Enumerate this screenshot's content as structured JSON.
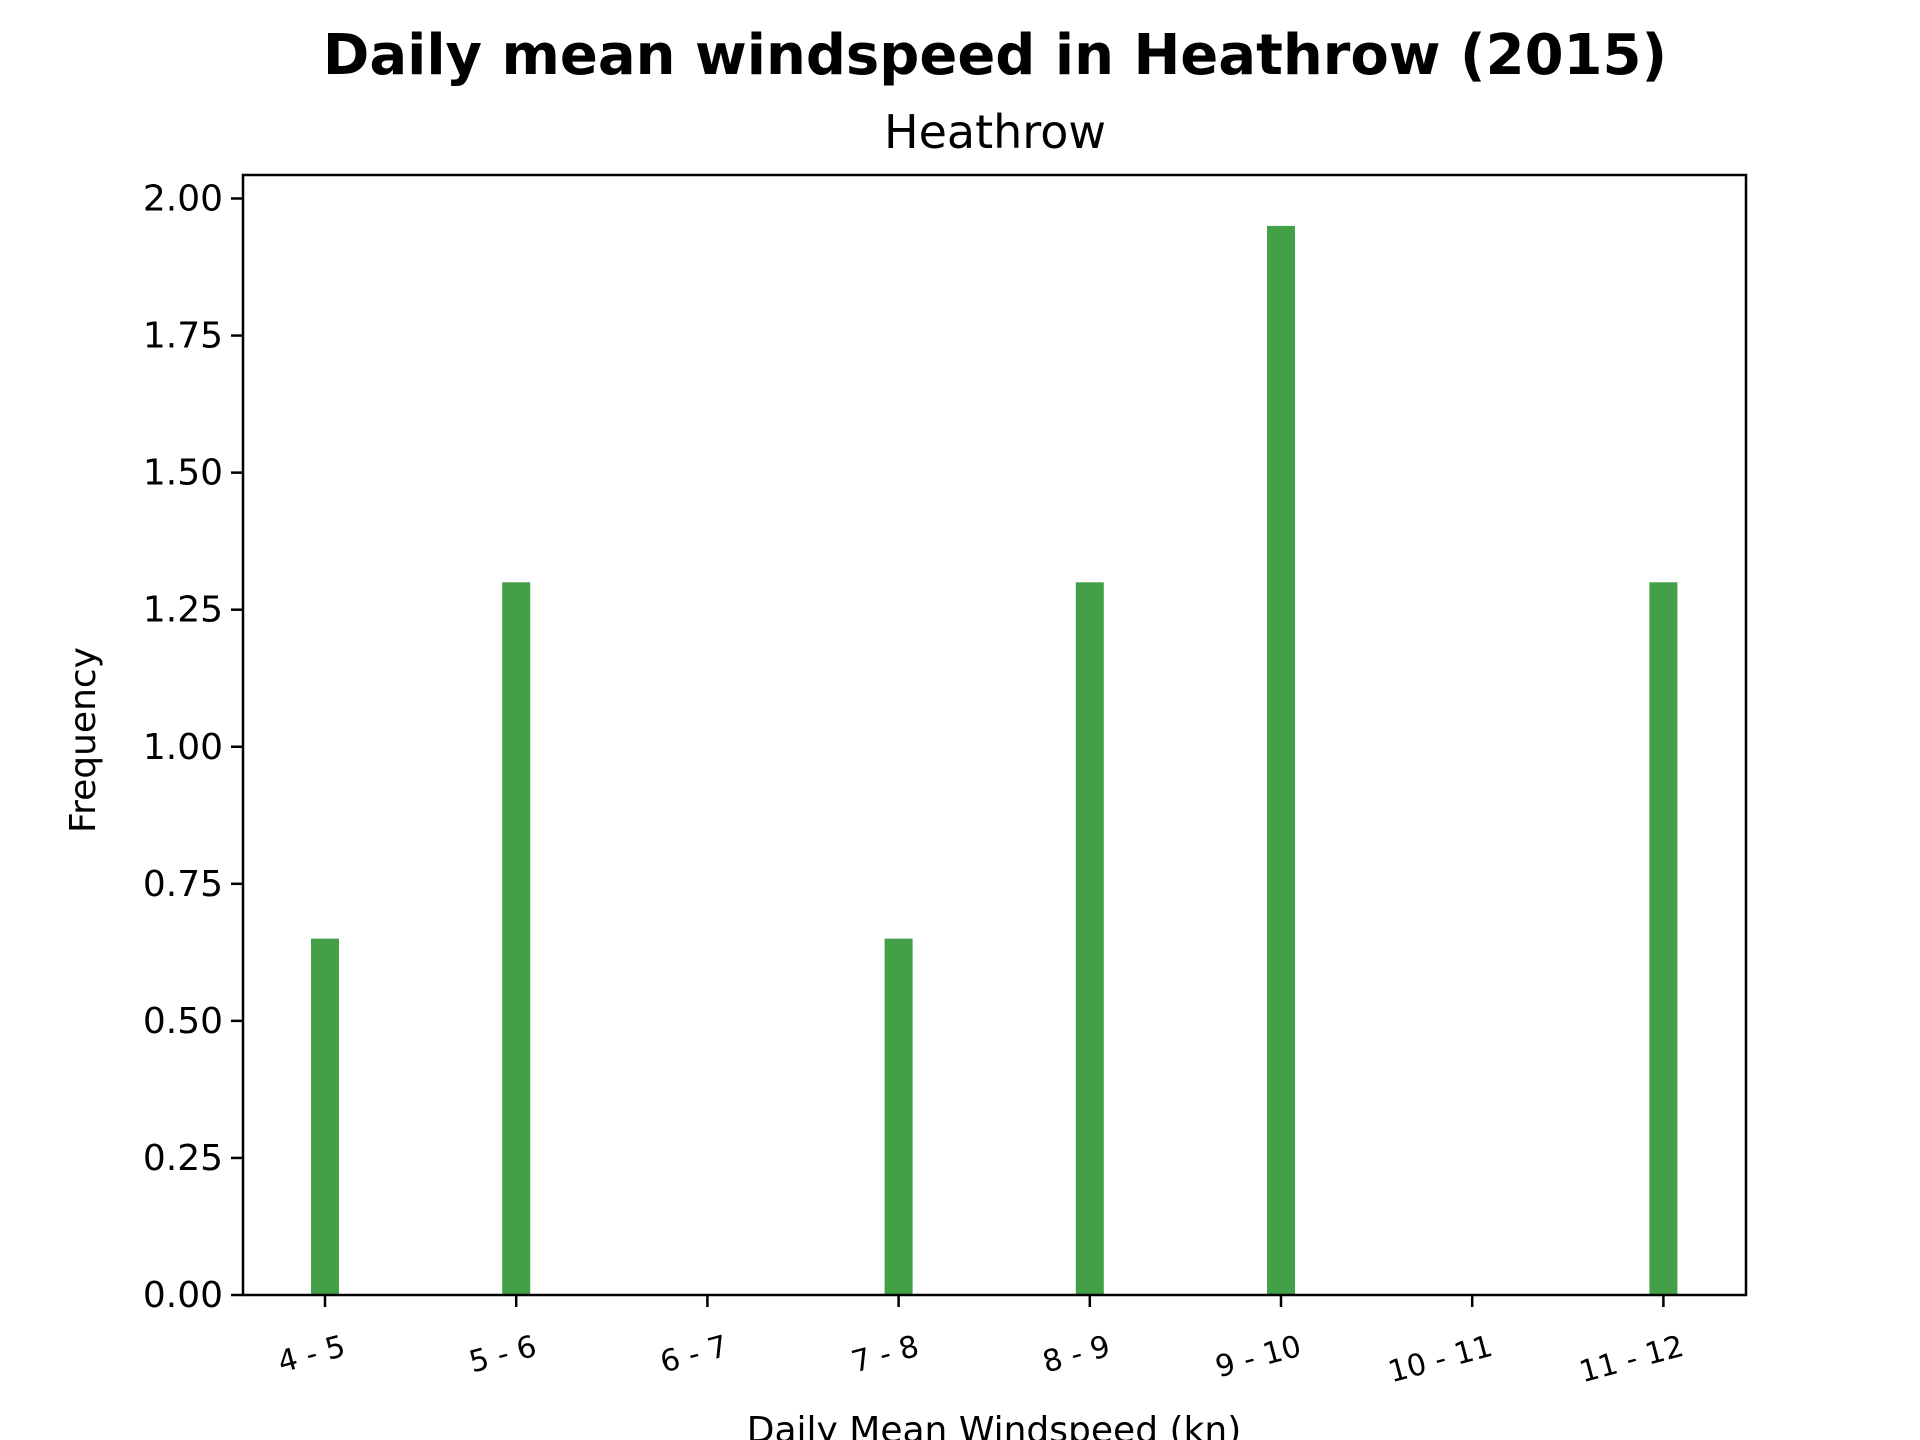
{
  "chart_data": {
    "type": "bar",
    "title": "Daily mean windspeed in Heathrow (2015)",
    "subtitle": "Heathrow",
    "xlabel": "Daily Mean Windspeed (kn)",
    "ylabel": "Frequency",
    "categories": [
      "4 - 5",
      "5 - 6",
      "6 - 7",
      "7 - 8",
      "8 - 9",
      "9 - 10",
      "10 - 11",
      "11 - 12"
    ],
    "values": [
      0.65,
      1.3,
      0,
      0.65,
      1.3,
      1.95,
      0,
      1.3
    ],
    "ylim": [
      0,
      2.05
    ],
    "yticks": [
      "0.00",
      "0.25",
      "0.50",
      "0.75",
      "1.00",
      "1.25",
      "1.50",
      "1.75",
      "2.00"
    ],
    "bar_color": "#43a047",
    "grid": false,
    "legend": "none"
  }
}
